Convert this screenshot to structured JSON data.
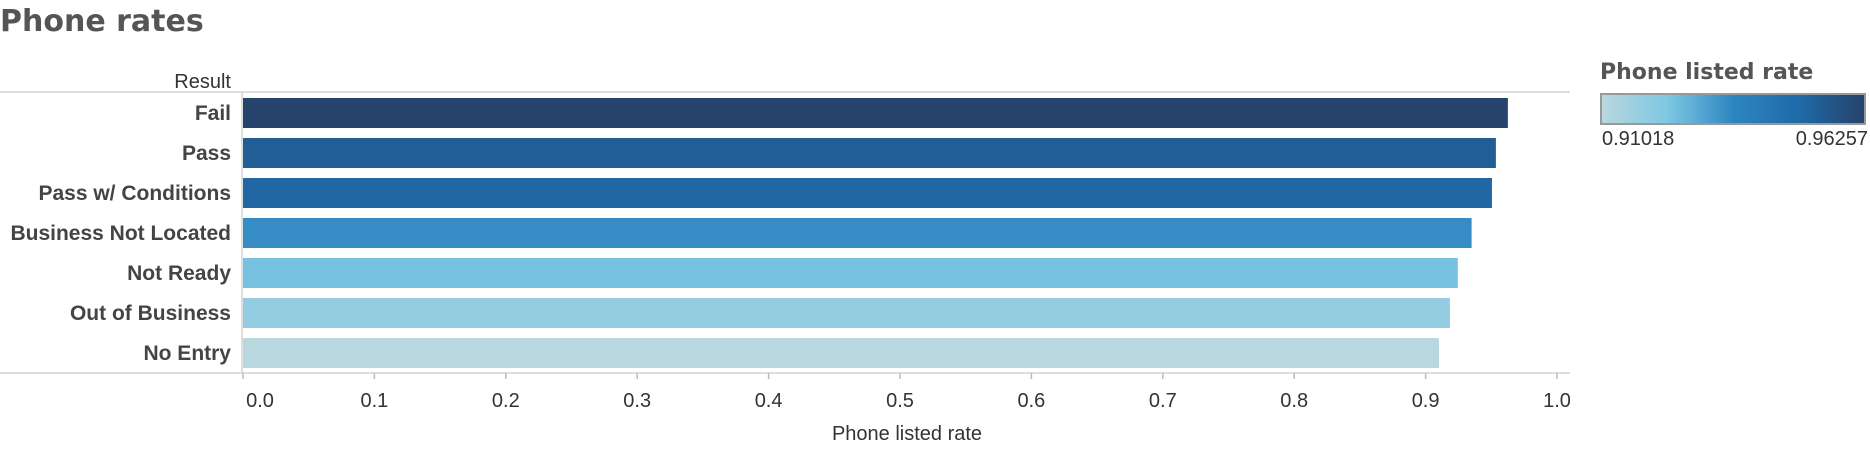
{
  "title": "Phone rates",
  "chart_data": {
    "type": "bar",
    "orientation": "horizontal",
    "row_header": "Result",
    "categories": [
      "Fail",
      "Pass",
      "Pass w/ Conditions",
      "Business Not Located",
      "Not Ready",
      "Out of Business",
      "No Entry"
    ],
    "values": [
      0.9626,
      0.9535,
      0.9505,
      0.935,
      0.9245,
      0.9185,
      0.9102
    ],
    "xlabel": "Phone listed rate",
    "xlim": [
      0,
      1.0
    ],
    "xticks": [
      "0.0",
      "0.1",
      "0.2",
      "0.3",
      "0.4",
      "0.5",
      "0.6",
      "0.7",
      "0.8",
      "0.9",
      "1.0"
    ],
    "grid": false,
    "color_scale": {
      "title": "Phone listed rate",
      "min": 0.91018,
      "max": 0.96257,
      "min_label": "0.91018",
      "max_label": "0.96257",
      "colors": [
        "#b9d7de",
        "#7ec8e3",
        "#2e86c1",
        "#1f6aa8",
        "#26436b"
      ]
    }
  }
}
